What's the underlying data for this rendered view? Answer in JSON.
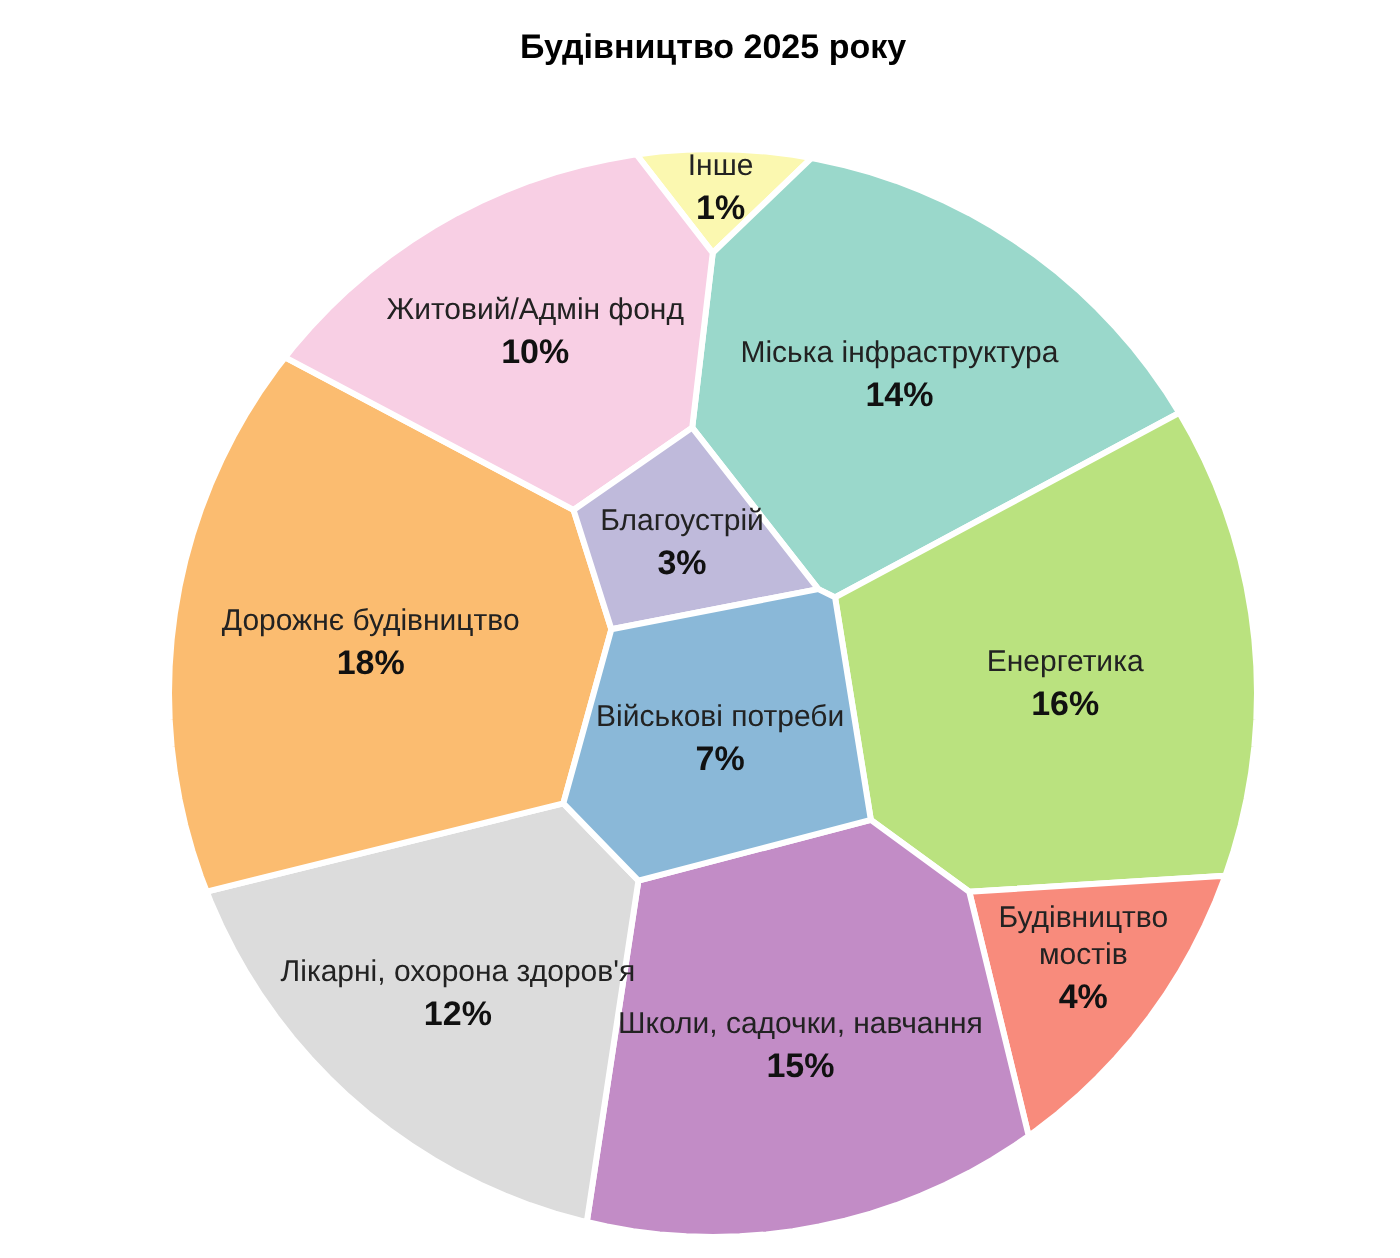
{
  "chart_data": {
    "type": "other",
    "title": "Будівництво 2025 року",
    "categories": [
      "Інше",
      "Міська інфраструктура",
      "Енергетика",
      "Будівництво мостів",
      "Школи, садочки, навчання",
      "Лікарні, охорона здоров'я",
      "Дорожнє будівництво",
      "Житовий/Адмін фонд",
      "Благоустрій",
      "Військові потреби"
    ],
    "values": [
      1,
      14,
      16,
      4,
      15,
      12,
      18,
      10,
      3,
      7
    ],
    "value_labels": [
      "1%",
      "14%",
      "16%",
      "4%",
      "15%",
      "12%",
      "18%",
      "10%",
      "3%",
      "7%"
    ],
    "colors": [
      "#fbf8b0",
      "#9ad8cb",
      "#bae27f",
      "#f88b7c",
      "#c28cc6",
      "#dcdcdc",
      "#fbbc70",
      "#f8cfe4",
      "#bfbadb",
      "#8ab8d8"
    ]
  }
}
